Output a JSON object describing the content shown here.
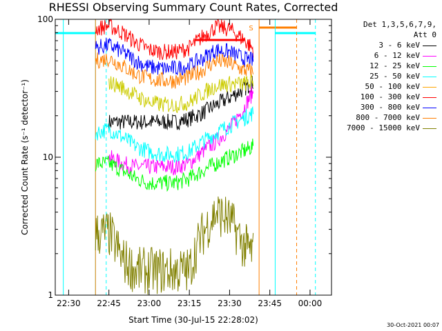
{
  "chart_data": {
    "type": "line",
    "title": "RHESSI Observing Summary Count Rates, Corrected",
    "xlabel": "Start Time (30-Jul-15 22:28:02)",
    "ylabel": "Corrected Count Rate (s⁻¹ detector⁻¹)",
    "yscale": "log",
    "ylim": [
      1,
      100
    ],
    "xlim": [
      "22:25",
      "00:08"
    ],
    "x_ticks": [
      "22:30",
      "22:45",
      "23:00",
      "23:15",
      "23:30",
      "23:45",
      "00:00"
    ],
    "y_ticks": [
      "1",
      "10",
      "100"
    ],
    "x": [
      "22:40",
      "22:45",
      "22:50",
      "22:55",
      "23:00",
      "23:05",
      "23:10",
      "23:15",
      "23:20",
      "23:25",
      "23:30",
      "23:35",
      "23:39"
    ],
    "series": [
      {
        "name": "3 - 6 keV",
        "color": "#000000",
        "values": [
          null,
          18,
          18,
          18,
          18,
          18,
          18,
          19,
          21,
          24,
          27,
          31,
          35
        ]
      },
      {
        "name": "6 - 12 keV",
        "color": "#ff00ff",
        "values": [
          null,
          10,
          9,
          8.5,
          8.5,
          8.5,
          8.5,
          9,
          11,
          13,
          16,
          22,
          30
        ]
      },
      {
        "name": "12 - 25 keV",
        "color": "#00ff00",
        "values": [
          9,
          9,
          8,
          7,
          6.5,
          6.5,
          6.5,
          7,
          8,
          9,
          10,
          11,
          12
        ]
      },
      {
        "name": "25 - 50 keV",
        "color": "#00ffff",
        "values": [
          15,
          16,
          14,
          12,
          11,
          10.5,
          10.5,
          11,
          13,
          15,
          17,
          19,
          21
        ]
      },
      {
        "name": "50 - 100 keV",
        "color": "#ffa500",
        "values": [
          null,
          null,
          null,
          null,
          null,
          null,
          null,
          null,
          null,
          null,
          null,
          null,
          null
        ]
      },
      {
        "name": "100 - 300 keV",
        "color": "#ff0000",
        "values": [
          85,
          90,
          80,
          68,
          60,
          58,
          58,
          62,
          75,
          88,
          85,
          72,
          60
        ]
      },
      {
        "name": "300 - 800 keV",
        "color": "#0000ff",
        "values": [
          62,
          65,
          58,
          50,
          45,
          44,
          44,
          46,
          52,
          60,
          58,
          52,
          50
        ]
      },
      {
        "name": "800 - 7000 keV",
        "color": "#ff7f00",
        "values": [
          50,
          52,
          46,
          40,
          37,
          36,
          36,
          38,
          43,
          50,
          48,
          43,
          42
        ]
      },
      {
        "name": "7000 - 15000 keV",
        "color": "#808000",
        "values": [
          2.8,
          2.8,
          1.8,
          1.5,
          1.5,
          1.5,
          1.5,
          1.5,
          2.8,
          4,
          3.5,
          2.3,
          2
        ]
      }
    ],
    "extra_series": [
      {
        "color": "#cccc00",
        "values": [
          null,
          35,
          32,
          28,
          25,
          24,
          24,
          25,
          29,
          33,
          34,
          34,
          35
        ]
      }
    ],
    "vertical_lines": [
      {
        "x": "22:28",
        "color": "#00ffff",
        "style": "solid"
      },
      {
        "x": "22:40",
        "color": "#00ffff",
        "style": "solid"
      },
      {
        "x": "22:44",
        "color": "#00ffff",
        "style": "dashed"
      },
      {
        "x": "22:40",
        "color": "#ff7f00",
        "style": "solid"
      },
      {
        "x": "23:41",
        "color": "#ff7f00",
        "style": "solid"
      },
      {
        "x": "23:47",
        "color": "#00ffff",
        "style": "solid"
      },
      {
        "x": "23:55",
        "color": "#ff7f00",
        "style": "dashed"
      },
      {
        "x": "00:02",
        "color": "#00ffff",
        "style": "dashed"
      }
    ],
    "state_bars": [
      {
        "x0": "22:25",
        "x1": "22:40",
        "color": "#00ffff"
      },
      {
        "x0": "23:47",
        "x1": "00:02",
        "color": "#00ffff"
      },
      {
        "x0": "23:41",
        "x1": "23:55",
        "color": "#ff7f00"
      },
      {
        "x0": "23:17",
        "x1": "23:35",
        "color": "#ff0000"
      }
    ],
    "annotations": [
      {
        "text": "S",
        "x": "23:38",
        "color": "#ff7f00"
      }
    ],
    "legend": {
      "position": "right",
      "header": [
        "Det 1,3,5,6,7,9,",
        "Att 0"
      ]
    },
    "grid": false
  },
  "timestamp": "30-Oct-2021 00:07"
}
